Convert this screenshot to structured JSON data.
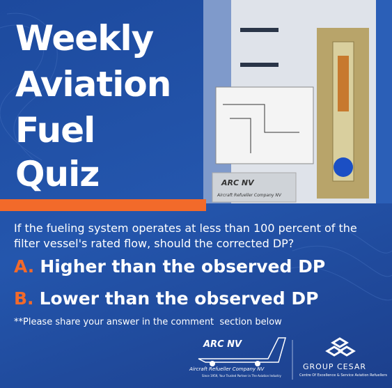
{
  "title_lines": [
    "Weekly",
    "Aviation",
    "Fuel",
    "Quiz"
  ],
  "question_lines": [
    "If the fueling system operates at less than 100 percent of the",
    "filter vessel's rated flow, should the corrected DP?"
  ],
  "options": [
    {
      "letter": "A.",
      "text": "Higher than the observed DP"
    },
    {
      "letter": "B.",
      "text": "Lower than the observed DP"
    }
  ],
  "note": "**Please share your answer in the comment  section below",
  "plate": {
    "brand": "ARC NV",
    "name": "Aircraft Refueller Company NV"
  },
  "arc_logo": {
    "brand": "ARC NV",
    "name": "Aircraft Refueller Company NV",
    "tagline": "Since 1959, Your Trusted Partner in The Aviation Industry"
  },
  "cesar_logo": {
    "brand": "GROUP CESAR",
    "tagline": "Centre Of Excellence & Service Aviation Refuellers"
  }
}
